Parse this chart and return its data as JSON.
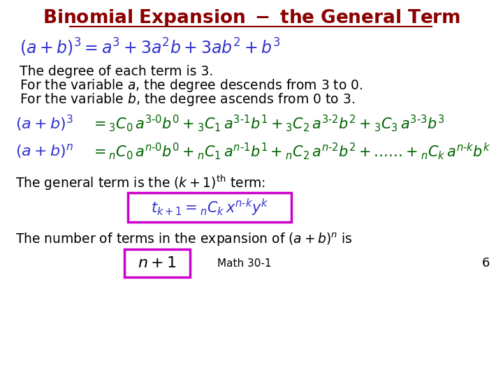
{
  "title": "Binomial Expansion - the General Term",
  "title_color": "#8B0000",
  "bg_color": "#FFFFFF",
  "blue": "#3333CC",
  "green": "#006400",
  "black": "#000000",
  "magenta": "#CC00CC"
}
